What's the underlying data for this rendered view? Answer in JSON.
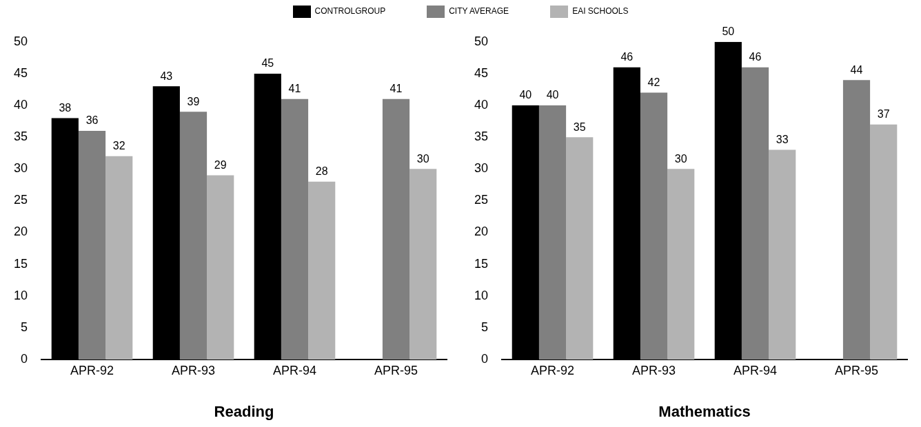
{
  "chart_data": [
    {
      "type": "bar",
      "xlabel": "Reading",
      "categories": [
        "APR-92",
        "APR-93",
        "APR-94",
        "APR-95"
      ],
      "series": [
        {
          "name": "CONTROLGROUP",
          "color": "#000000",
          "values": [
            38,
            43,
            45,
            null
          ]
        },
        {
          "name": "CITY AVERAGE",
          "color": "#808080",
          "values": [
            36,
            39,
            41,
            41
          ]
        },
        {
          "name": "EAI SCHOOLS",
          "color": "#b3b3b3",
          "values": [
            32,
            29,
            28,
            30
          ]
        }
      ],
      "ylim": [
        0,
        50
      ],
      "yticks": [
        0,
        5,
        10,
        15,
        20,
        25,
        30,
        35,
        40,
        45,
        50
      ],
      "grid": false,
      "legend": "top",
      "data_labels": true
    },
    {
      "type": "bar",
      "xlabel": "Mathematics",
      "categories": [
        "APR-92",
        "APR-93",
        "APR-94",
        "APR-95"
      ],
      "series": [
        {
          "color": "#000000",
          "values": [
            40,
            46,
            50,
            null
          ]
        },
        {
          "color": "#808080",
          "values": [
            40,
            42,
            46,
            44
          ]
        },
        {
          "color": "#b3b3b3",
          "values": [
            35,
            30,
            33,
            37
          ]
        }
      ],
      "ylim": [
        0,
        50
      ],
      "yticks": [
        0,
        5,
        10,
        15,
        20,
        25,
        30,
        35,
        40,
        45,
        50
      ],
      "grid": false,
      "data_labels": true
    }
  ]
}
